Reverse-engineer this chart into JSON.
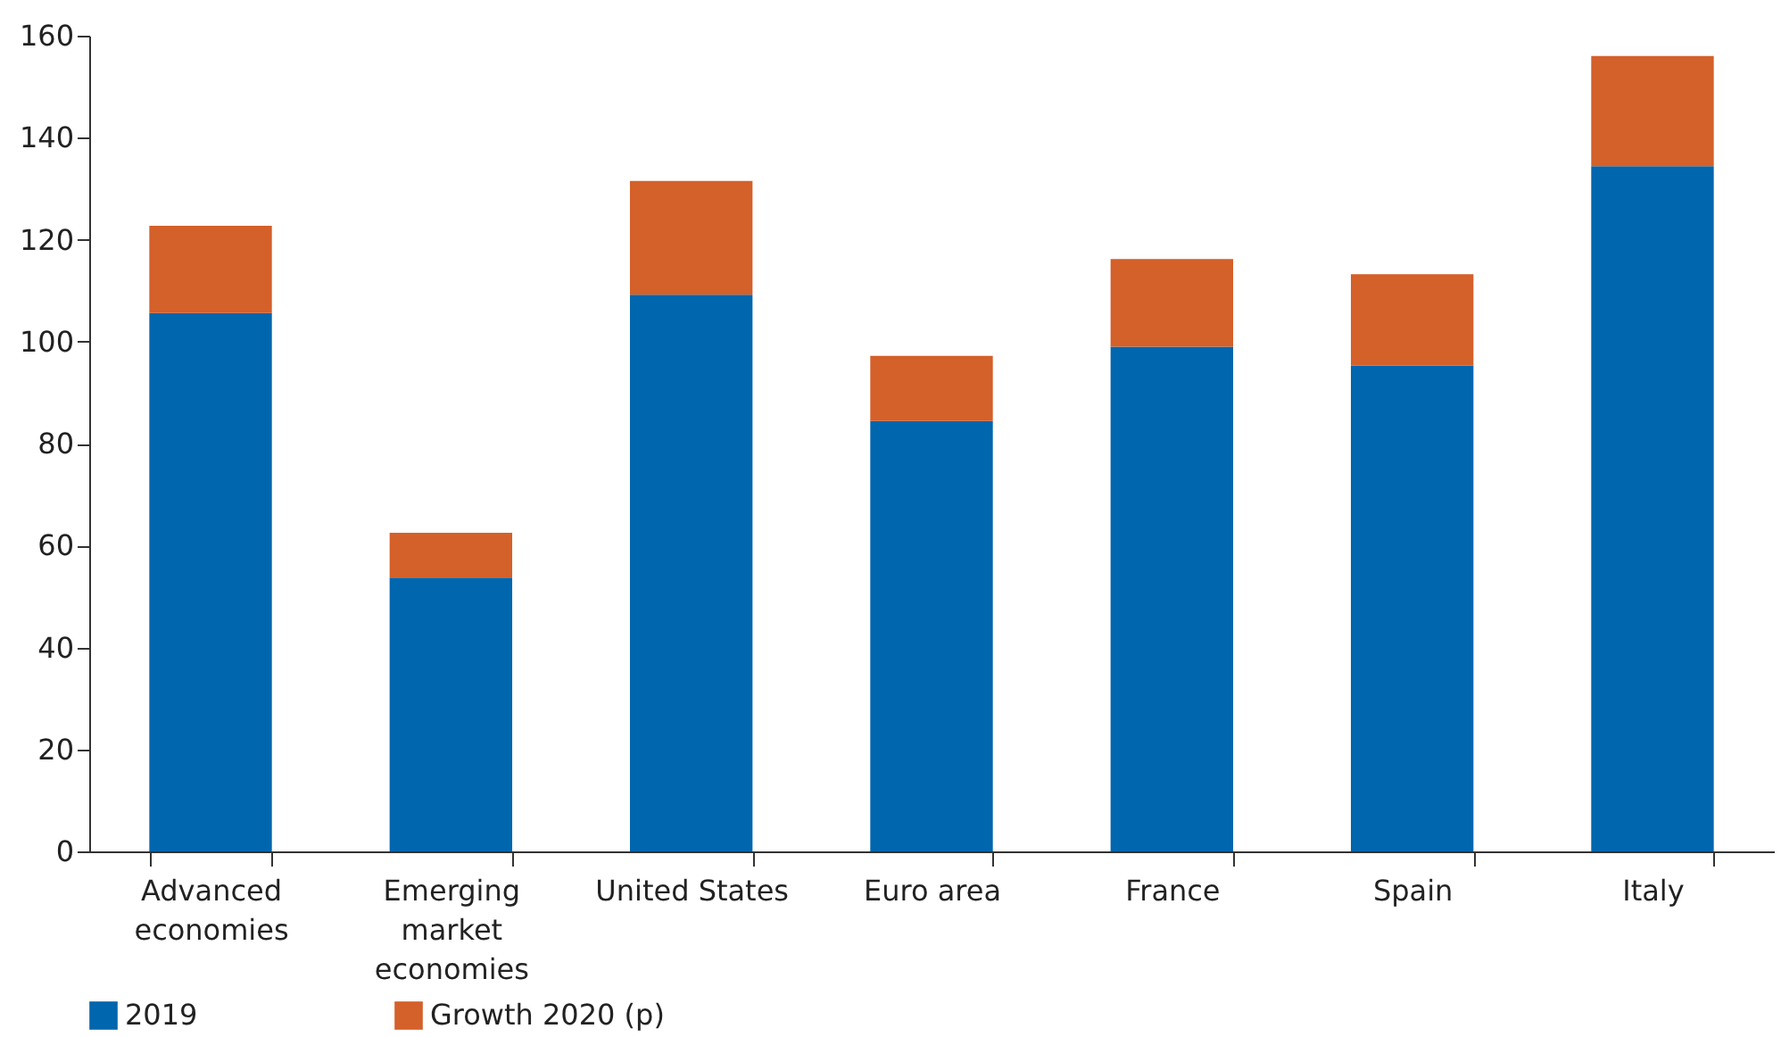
{
  "chart_data": {
    "type": "bar",
    "stacked": true,
    "categories": [
      "Advanced economies",
      "Emerging market economies",
      "United States",
      "Euro area",
      "France",
      "Spain",
      "Italy"
    ],
    "series": [
      {
        "name": "2019",
        "color": "#0066ad",
        "values": [
          105.6,
          53.7,
          109.2,
          84.4,
          99.0,
          95.3,
          134.4
        ]
      },
      {
        "name": "Growth 2020 (p)",
        "color": "#d4602a",
        "values": [
          17.1,
          8.8,
          22.3,
          12.8,
          17.2,
          17.9,
          21.6
        ]
      }
    ],
    "ylim": [
      0,
      160
    ],
    "yticks": [
      0,
      20,
      40,
      60,
      80,
      100,
      120,
      140,
      160
    ],
    "grid": false,
    "legend": "bottom left"
  }
}
